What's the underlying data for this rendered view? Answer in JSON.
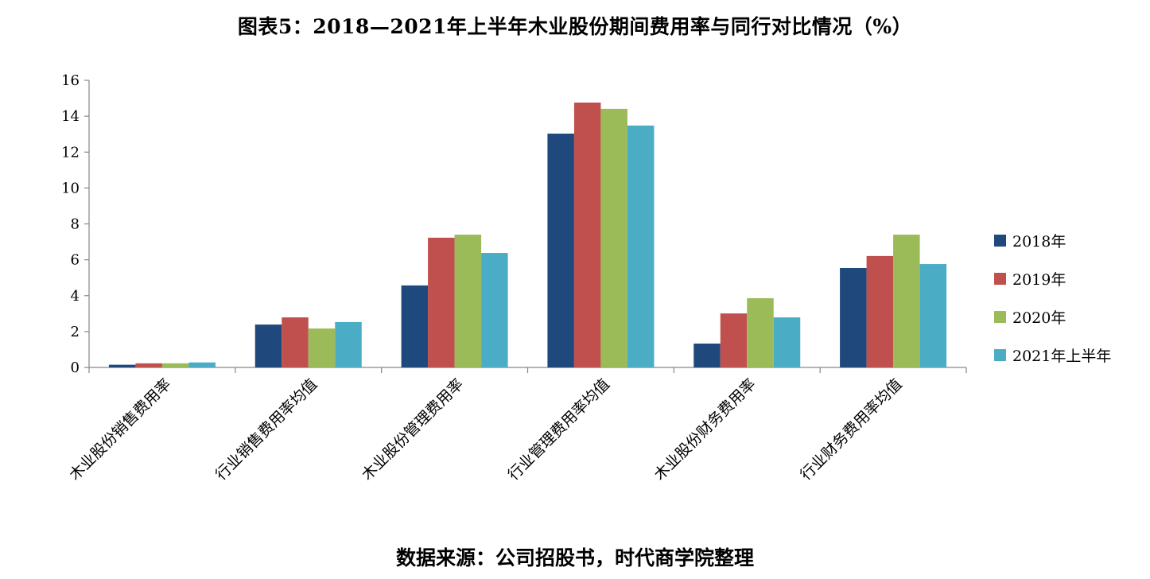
{
  "title": "图表5：2018—2021年上半年木业股份期间费用率与同行对比情况（%）",
  "source": "数据来源：公司招股书，时代商学院整理",
  "chart_data": {
    "type": "bar",
    "title": "图表5：2018—2021年上半年木业股份期间费用率与同行对比情况（%）",
    "xlabel": "",
    "ylabel": "",
    "ylim": [
      0,
      16
    ],
    "yticks": [
      0,
      2,
      4,
      6,
      8,
      10,
      12,
      14,
      16
    ],
    "grid": false,
    "legend_position": "right",
    "categories": [
      "木业股份销售费用率",
      "行业销售费用率均值",
      "木业股份管理费用率",
      "行业管理费用率均值",
      "木业股份财务费用率",
      "行业财务费用率均值"
    ],
    "series": [
      {
        "name": "2018年",
        "color": "#1F497D",
        "values": [
          0.15,
          2.39,
          4.57,
          13.03,
          1.33,
          5.54
        ]
      },
      {
        "name": "2019年",
        "color": "#C0504D",
        "values": [
          0.23,
          2.79,
          7.23,
          14.76,
          3.01,
          6.21
        ]
      },
      {
        "name": "2020年",
        "color": "#9BBB59",
        "values": [
          0.23,
          2.17,
          7.4,
          14.41,
          3.86,
          7.4
        ]
      },
      {
        "name": "2021年上半年",
        "color": "#4BACC6",
        "values": [
          0.28,
          2.53,
          6.38,
          13.48,
          2.79,
          5.76
        ]
      }
    ],
    "source": "数据来源：公司招股书，时代商学院整理"
  },
  "legend": [
    {
      "label": "2018年",
      "color": "#1F497D"
    },
    {
      "label": "2019年",
      "color": "#C0504D"
    },
    {
      "label": "2020年",
      "color": "#9BBB59"
    },
    {
      "label": "2021年上半年",
      "color": "#4BACC6"
    }
  ]
}
